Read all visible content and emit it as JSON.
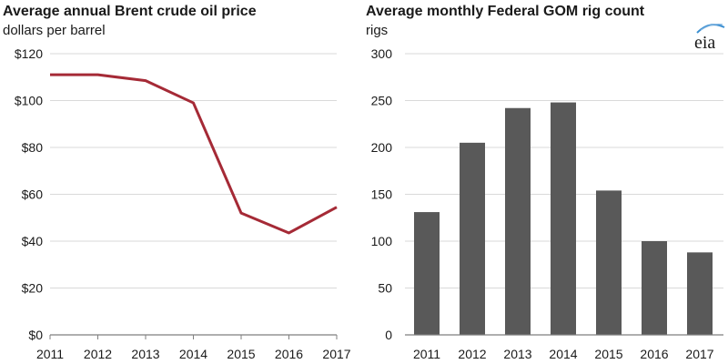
{
  "chart_data": [
    {
      "type": "line",
      "title": "Average annual Brent crude oil price",
      "ylabel": "dollars per barrel",
      "xlabel": "",
      "categories": [
        "2011",
        "2012",
        "2013",
        "2014",
        "2015",
        "2016",
        "2017"
      ],
      "y_ticks": [
        "$0",
        "$20",
        "$40",
        "$60",
        "$80",
        "$100",
        "$120"
      ],
      "y_tick_values": [
        0,
        20,
        40,
        60,
        80,
        100,
        120
      ],
      "ylim": [
        0,
        120
      ],
      "grid": true,
      "series": [
        {
          "name": "Brent crude oil price",
          "values": [
            111,
            111,
            108.5,
            99,
            52,
            43.5,
            54.5
          ],
          "color": "#a52a36"
        }
      ]
    },
    {
      "type": "bar",
      "title": "Average monthly Federal GOM rig count",
      "ylabel": "rigs",
      "xlabel": "",
      "categories": [
        "2011",
        "2012",
        "2013",
        "2014",
        "2015",
        "2016",
        "2017"
      ],
      "y_ticks": [
        "0",
        "50",
        "100",
        "150",
        "200",
        "250",
        "300"
      ],
      "y_tick_values": [
        0,
        50,
        100,
        150,
        200,
        250,
        300
      ],
      "ylim": [
        0,
        300
      ],
      "grid": true,
      "series": [
        {
          "name": "Federal GOM rig count",
          "values": [
            131,
            205,
            242,
            248,
            154,
            100,
            88
          ],
          "color": "#595959"
        }
      ]
    }
  ],
  "logo": {
    "text": "eia"
  },
  "colors": {
    "grid": "#d9d9d9",
    "axis": "#7f7f7f",
    "line_series": "#a52a36",
    "bar_series": "#595959"
  }
}
